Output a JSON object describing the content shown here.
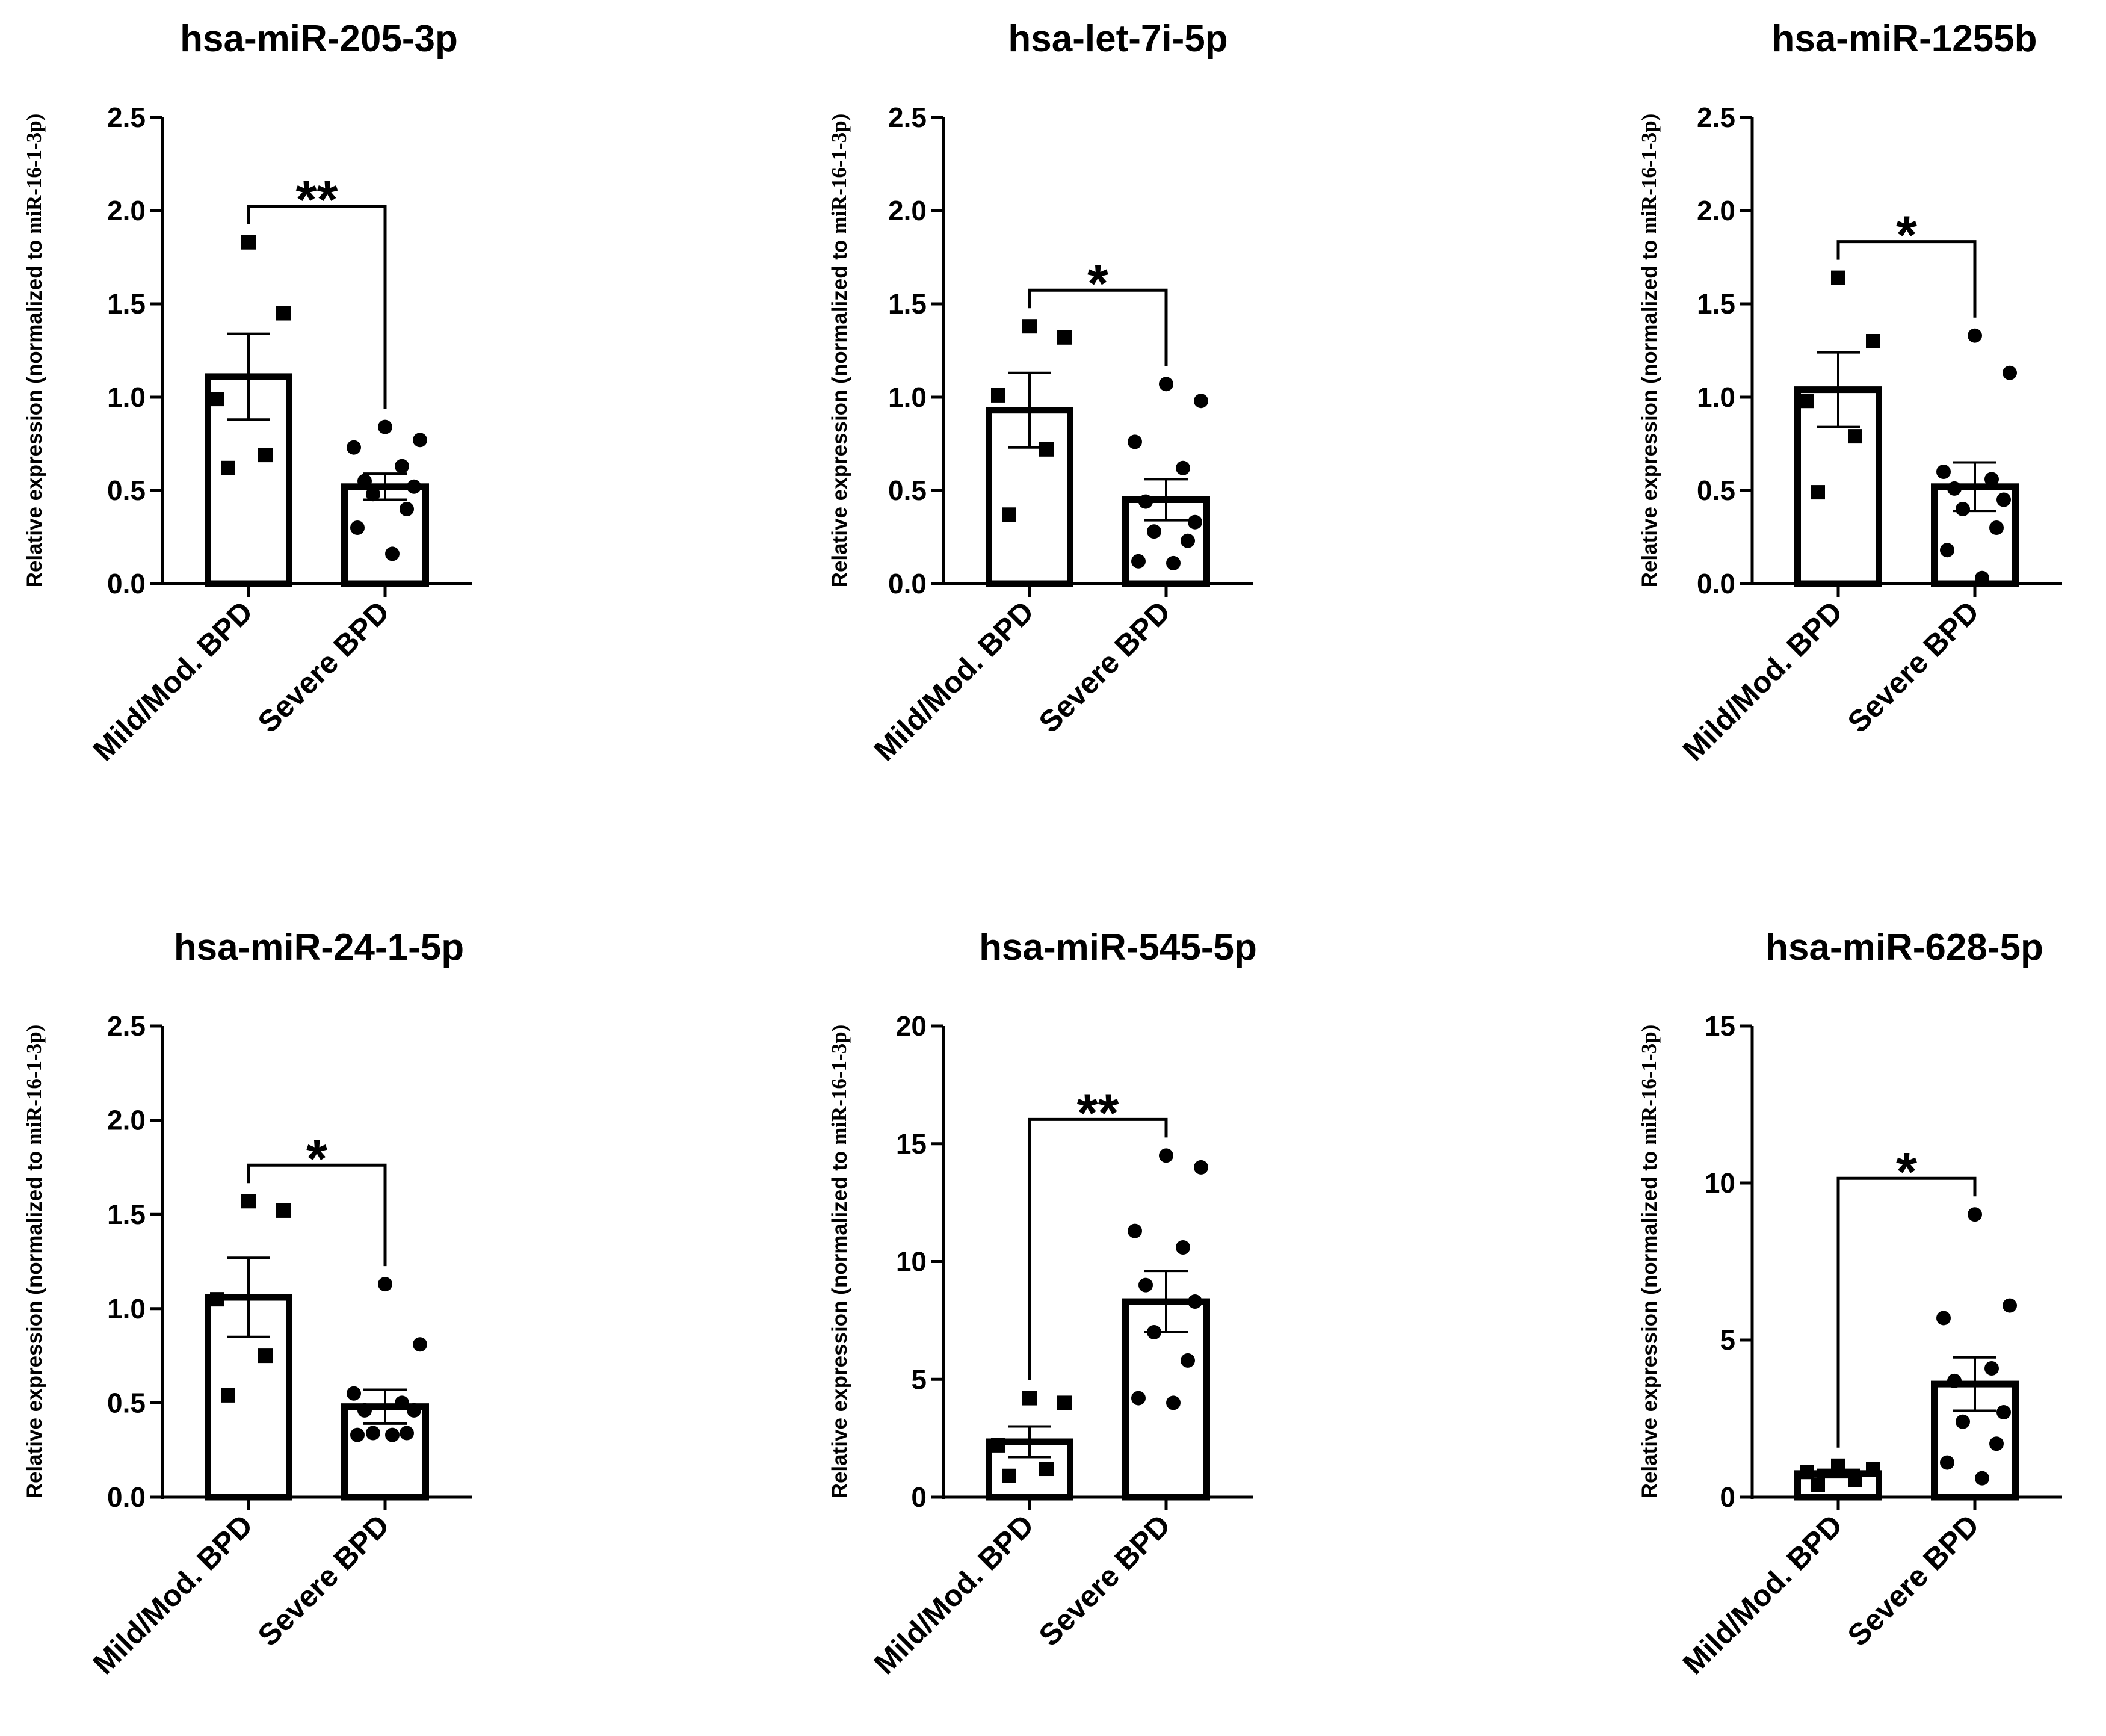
{
  "chart_data": [
    {
      "type": "bar",
      "title": "hsa-miR-205-3p",
      "xlabel": "",
      "ylabel": "Relative expression (normalized to miR-16-1-3p)",
      "ylim": [
        0,
        2.5
      ],
      "yticks": [
        0.0,
        0.5,
        1.0,
        1.5,
        2.0,
        2.5
      ],
      "ytick_labels": [
        "0.0",
        "0.5",
        "1.0",
        "1.5",
        "2.0",
        "2.5"
      ],
      "categories": [
        "Mild/Mod. BPD",
        "Severe BPD"
      ],
      "means": [
        1.11,
        0.52
      ],
      "sem": [
        0.23,
        0.07
      ],
      "points": [
        [
          1.83,
          1.45,
          0.99,
          0.69,
          0.62
        ],
        [
          0.84,
          0.77,
          0.73,
          0.63,
          0.55,
          0.52,
          0.48,
          0.4,
          0.3,
          0.16
        ]
      ],
      "markers": [
        "square",
        "circle"
      ],
      "significance": "**"
    },
    {
      "type": "bar",
      "title": "hsa-let-7i-5p",
      "xlabel": "",
      "ylabel": "Relative expression (normalized to miR-16-1-3p)",
      "ylim": [
        0,
        2.5
      ],
      "yticks": [
        0.0,
        0.5,
        1.0,
        1.5,
        2.0,
        2.5
      ],
      "ytick_labels": [
        "0.0",
        "0.5",
        "1.0",
        "1.5",
        "2.0",
        "2.5"
      ],
      "categories": [
        "Mild/Mod. BPD",
        "Severe BPD"
      ],
      "means": [
        0.93,
        0.45
      ],
      "sem": [
        0.2,
        0.11
      ],
      "points": [
        [
          1.38,
          1.32,
          1.01,
          0.72,
          0.37
        ],
        [
          1.07,
          0.98,
          0.76,
          0.62,
          0.44,
          0.33,
          0.28,
          0.23,
          0.12,
          0.11
        ]
      ],
      "markers": [
        "square",
        "circle"
      ],
      "significance": "*"
    },
    {
      "type": "bar",
      "title": "hsa-miR-1255b",
      "xlabel": "",
      "ylabel": "Relative expression (normalized to miR-16-1-3p)",
      "ylim": [
        0,
        2.5
      ],
      "yticks": [
        0.0,
        0.5,
        1.0,
        1.5,
        2.0,
        2.5
      ],
      "ytick_labels": [
        "0.0",
        "0.5",
        "1.0",
        "1.5",
        "2.0",
        "2.5"
      ],
      "categories": [
        "Mild/Mod. BPD",
        "Severe BPD"
      ],
      "means": [
        1.04,
        0.52
      ],
      "sem": [
        0.2,
        0.13
      ],
      "points": [
        [
          1.64,
          1.3,
          0.98,
          0.79,
          0.49
        ],
        [
          1.33,
          1.13,
          0.6,
          0.56,
          0.51,
          0.45,
          0.4,
          0.3,
          0.18,
          0.03
        ]
      ],
      "markers": [
        "square",
        "circle"
      ],
      "significance": "*"
    },
    {
      "type": "bar",
      "title": "hsa-miR-24-1-5p",
      "xlabel": "",
      "ylabel": "Relative expression (normalized to miR-16-1-3p)",
      "ylim": [
        0,
        2.5
      ],
      "yticks": [
        0.0,
        0.5,
        1.0,
        1.5,
        2.0,
        2.5
      ],
      "ytick_labels": [
        "0.0",
        "0.5",
        "1.0",
        "1.5",
        "2.0",
        "2.5"
      ],
      "categories": [
        "Mild/Mod. BPD",
        "Severe BPD"
      ],
      "means": [
        1.06,
        0.48
      ],
      "sem": [
        0.21,
        0.09
      ],
      "points": [
        [
          1.57,
          1.52,
          1.05,
          0.75,
          0.54
        ],
        [
          1.13,
          0.81,
          0.55,
          0.5,
          0.46,
          0.46,
          0.34,
          0.34,
          0.33,
          0.33
        ]
      ],
      "markers": [
        "square",
        "circle"
      ],
      "significance": "*"
    },
    {
      "type": "bar",
      "title": "hsa-miR-545-5p",
      "xlabel": "",
      "ylabel": "Relative expression (normalized to miR-16-1-3p)",
      "ylim": [
        0,
        20
      ],
      "yticks": [
        0,
        5,
        10,
        15,
        20
      ],
      "ytick_labels": [
        "0",
        "5",
        "10",
        "15",
        "20"
      ],
      "categories": [
        "Mild/Mod. BPD",
        "Severe BPD"
      ],
      "means": [
        2.35,
        8.3
      ],
      "sem": [
        0.65,
        1.3
      ],
      "points": [
        [
          4.2,
          4.0,
          2.2,
          1.2,
          0.9
        ],
        [
          14.5,
          14.0,
          11.3,
          10.6,
          9.0,
          8.3,
          7.0,
          5.8,
          4.2,
          4.0
        ]
      ],
      "markers": [
        "square",
        "circle"
      ],
      "significance": "**"
    },
    {
      "type": "bar",
      "title": "hsa-miR-628-5p",
      "xlabel": "",
      "ylabel": "Relative expression (normalized to miR-16-1-3p)",
      "ylim": [
        0,
        15
      ],
      "yticks": [
        0,
        5,
        10,
        15
      ],
      "ytick_labels": [
        "0",
        "5",
        "10",
        "15"
      ],
      "categories": [
        "Mild/Mod. BPD",
        "Severe BPD"
      ],
      "means": [
        0.75,
        3.6
      ],
      "sem": [
        0.12,
        0.85
      ],
      "points": [
        [
          1.0,
          0.9,
          0.8,
          0.55,
          0.4
        ],
        [
          9.0,
          6.1,
          5.7,
          4.1,
          3.7,
          2.7,
          2.4,
          1.7,
          1.1,
          0.6
        ]
      ],
      "markers": [
        "square",
        "circle"
      ],
      "significance": "*"
    }
  ]
}
